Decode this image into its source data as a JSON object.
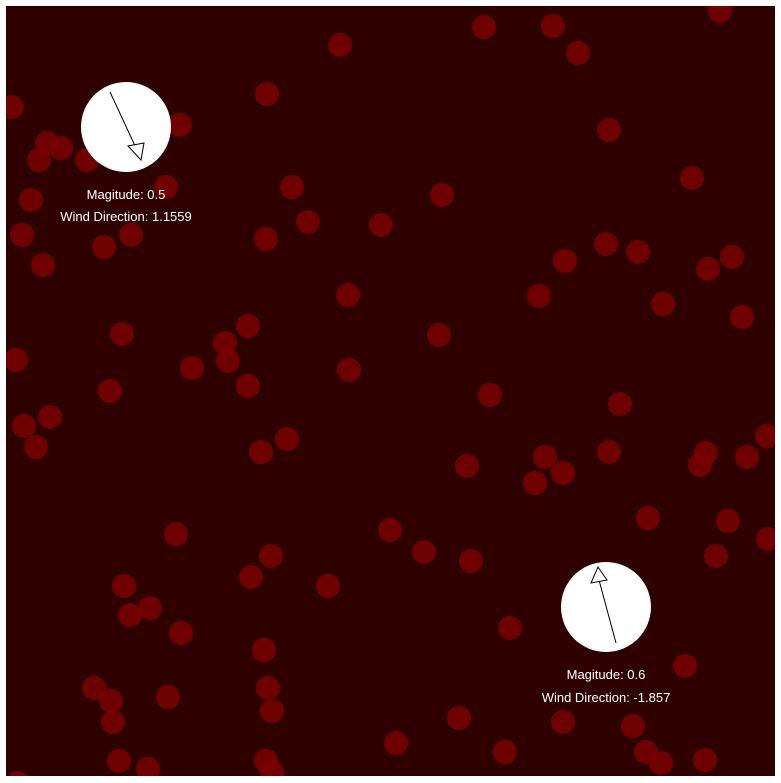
{
  "colors": {
    "background": "#2e0000",
    "particle": "#7a0000",
    "compass_face": "#ffffff",
    "text": "#ffffff"
  },
  "particle_icon": "circle",
  "wind_widgets": [
    {
      "magnitude_label": "Magitude: 0.5",
      "direction_label": "Wind Direction: 1.1559",
      "direction_radians": 1.1559,
      "magnitude": 0.5
    },
    {
      "magnitude_label": "Magitude: 0.6",
      "direction_label": "Wind Direction: -1.857",
      "direction_radians": -1.857,
      "magnitude": 0.6
    }
  ]
}
